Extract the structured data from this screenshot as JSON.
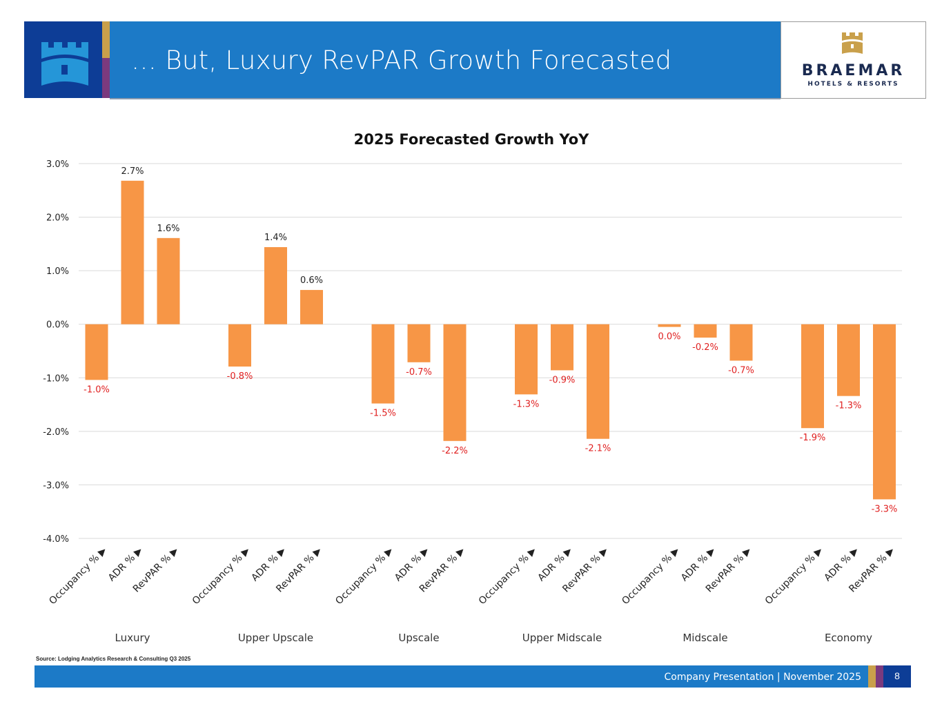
{
  "header": {
    "title": "… But, Luxury RevPAR Growth Forecasted",
    "logo_name": "BRAEMAR",
    "logo_sub": "HOTELS & RESORTS"
  },
  "chart_data": {
    "type": "bar",
    "title": "2025 Forecasted Growth YoY",
    "ylim": [
      -4,
      3
    ],
    "yticks": [
      "-4.0%",
      "-3.0%",
      "-2.0%",
      "-1.0%",
      "0.0%",
      "1.0%",
      "2.0%",
      "3.0%"
    ],
    "grid": true,
    "groups": [
      "Luxury",
      "Upper Upscale",
      "Upscale",
      "Upper Midscale",
      "Midscale",
      "Economy"
    ],
    "metrics": [
      "Occupancy % ▶",
      "ADR % ▶",
      "RevPAR % ▶"
    ],
    "values": [
      [
        -1.04,
        2.68,
        1.61
      ],
      [
        -0.79,
        1.44,
        0.64
      ],
      [
        -1.48,
        -0.71,
        -2.18
      ],
      [
        -1.31,
        -0.86,
        -2.14
      ],
      [
        -0.05,
        -0.25,
        -0.68
      ],
      [
        -1.94,
        -1.34,
        -3.27
      ]
    ],
    "labels": [
      [
        "-1.0%",
        "2.7%",
        "1.6%"
      ],
      [
        "-0.8%",
        "1.4%",
        "0.6%"
      ],
      [
        "-1.5%",
        "-0.7%",
        "-2.2%"
      ],
      [
        "-1.3%",
        "-0.9%",
        "-2.1%"
      ],
      [
        "0.0%",
        "-0.2%",
        "-0.7%"
      ],
      [
        "-1.9%",
        "-1.3%",
        "-3.3%"
      ]
    ],
    "colors": {
      "bar": "#f79646",
      "negative_label": "#e02020",
      "positive_label": "#222222"
    }
  },
  "source": "Source: Lodging Analytics Research & Consulting Q3 2025",
  "footer": {
    "text": "Company Presentation | November 2025",
    "page": "8"
  }
}
